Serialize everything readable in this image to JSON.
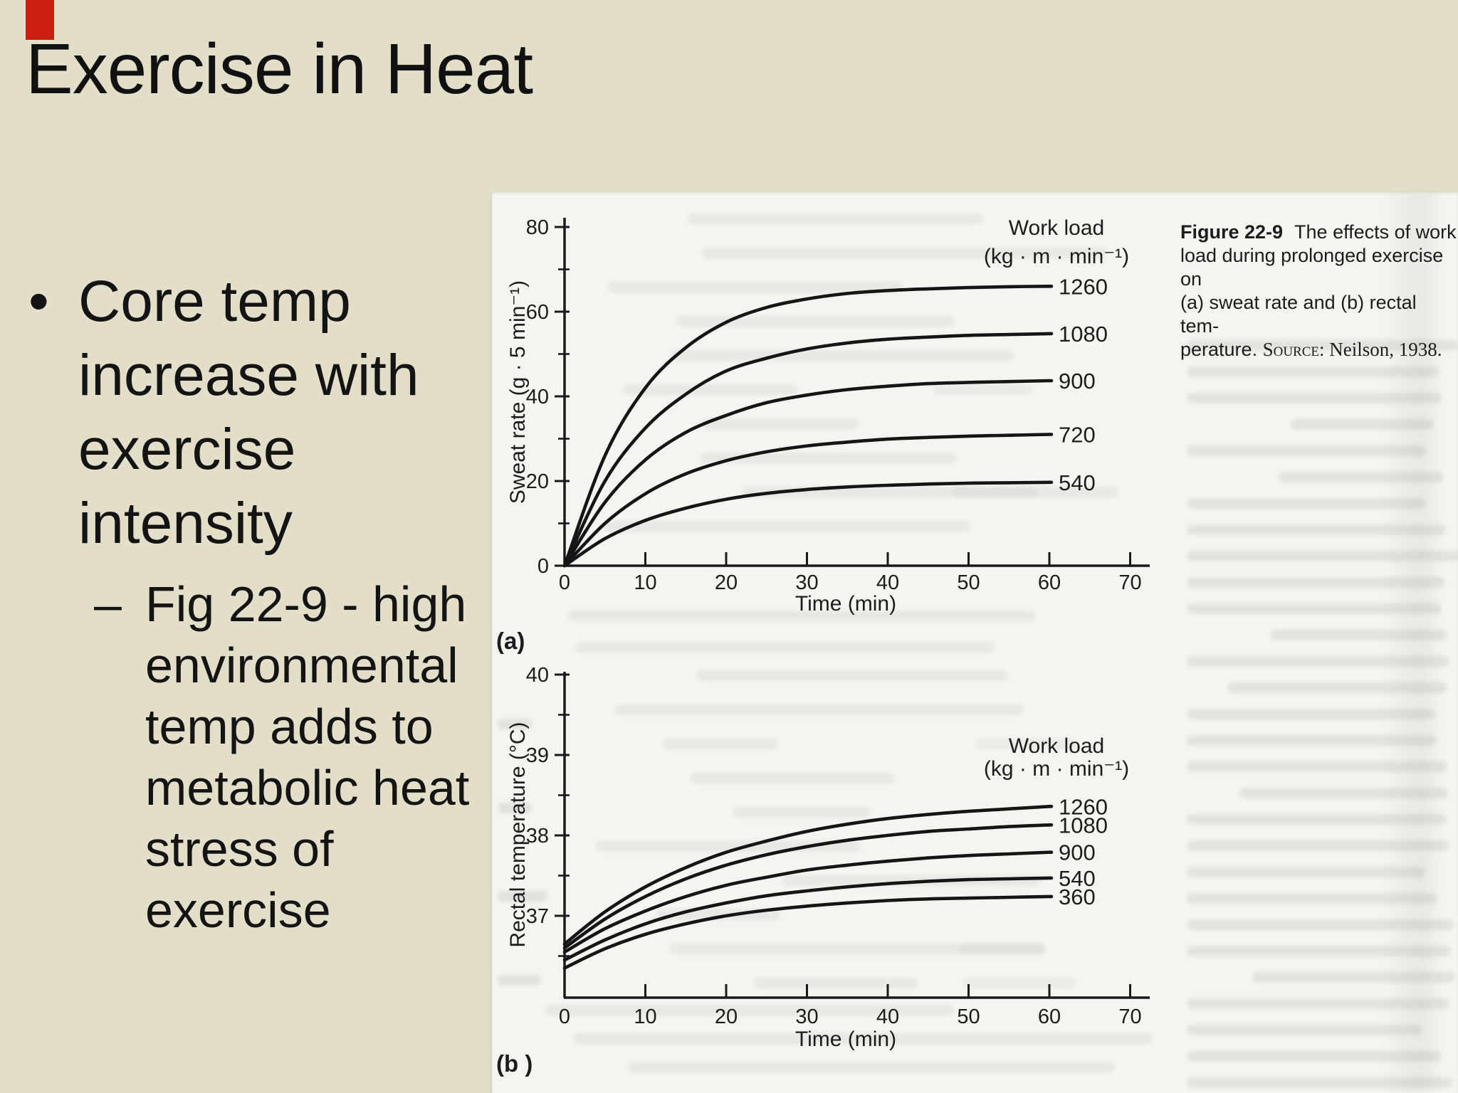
{
  "slide": {
    "title": "Exercise in Heat",
    "bullet": {
      "marker": "•",
      "lines": [
        "Core temp",
        "increase with",
        "exercise",
        "intensity"
      ]
    },
    "sub_bullet": {
      "marker": "–",
      "lines": [
        "Fig 22-9 - high",
        "environmental",
        "temp adds to",
        "metabolic heat",
        "stress of",
        "exercise"
      ]
    },
    "colors": {
      "background": "#e2dec8",
      "text": "#141414",
      "page": "#f5f4f0",
      "ink": "#1c1c1c",
      "artifact_red": "#cb1e12"
    }
  },
  "figure": {
    "caption": {
      "label": "Figure 22-9",
      "line1_rest": "The effects of work",
      "line2": "load during prolonged exercise on",
      "line3": "(a) sweat rate and (b) rectal tem-",
      "line4_prefix": "perature. ",
      "source_label": "Source:",
      "source_rest": " Neilson, 1938."
    }
  },
  "chart_data": [
    {
      "id": "a",
      "type": "line",
      "panel_label": "(a)",
      "title": "",
      "xlabel": "Time (min)",
      "ylabel": "Sweat rate (g · 5 min⁻¹)",
      "xlim": [
        0,
        72
      ],
      "ylim": [
        0,
        80
      ],
      "xticks": [
        0,
        10,
        20,
        30,
        40,
        50,
        60,
        70
      ],
      "yticks_major": [
        0,
        20,
        40,
        60,
        80
      ],
      "yticks_minor": [
        10,
        30,
        50,
        70
      ],
      "grid": false,
      "legend_position": "right",
      "legend_title": [
        "Work load",
        "(kg · m · min⁻¹)"
      ],
      "x": [
        0,
        5,
        10,
        15,
        20,
        25,
        30,
        35,
        40,
        45,
        50,
        55,
        60
      ],
      "series": [
        {
          "name": "1260",
          "values": [
            0,
            26,
            42,
            51.5,
            57.5,
            61,
            63,
            64.3,
            65,
            65.4,
            65.7,
            65.9,
            66
          ]
        },
        {
          "name": "1080",
          "values": [
            0,
            20,
            32.5,
            40.5,
            46,
            49,
            51.2,
            52.6,
            53.5,
            54,
            54.4,
            54.6,
            54.8
          ]
        },
        {
          "name": "900",
          "values": [
            0,
            15,
            25,
            31.5,
            35.5,
            38.5,
            40.3,
            41.6,
            42.4,
            43,
            43.3,
            43.5,
            43.7
          ]
        },
        {
          "name": "720",
          "values": [
            0,
            10,
            17,
            21.7,
            24.8,
            26.9,
            28.3,
            29.2,
            29.9,
            30.3,
            30.6,
            30.8,
            31
          ]
        },
        {
          "name": "540",
          "values": [
            0,
            6.4,
            10.7,
            13.6,
            15.7,
            17.1,
            18,
            18.6,
            19,
            19.3,
            19.5,
            19.6,
            19.7
          ]
        }
      ]
    },
    {
      "id": "b",
      "type": "line",
      "panel_label": "(b )",
      "title": "",
      "xlabel": "Time (min)",
      "ylabel": "Rectal temperature (°C)",
      "xlim": [
        0,
        72
      ],
      "ylim": [
        36,
        40
      ],
      "xticks": [
        0,
        10,
        20,
        30,
        40,
        50,
        60,
        70
      ],
      "yticks_major": [
        37,
        38,
        39,
        40
      ],
      "yticks_minor": [
        36.5,
        37.5,
        38.5,
        39.5
      ],
      "grid": false,
      "legend_position": "right",
      "legend_title": [
        "Work load",
        "(kg · m · min⁻¹)"
      ],
      "x": [
        0,
        5,
        10,
        15,
        20,
        25,
        30,
        35,
        40,
        45,
        50,
        55,
        60
      ],
      "series": [
        {
          "name": "1260",
          "values": [
            36.65,
            37.05,
            37.36,
            37.6,
            37.79,
            37.93,
            38.05,
            38.14,
            38.21,
            38.26,
            38.3,
            38.33,
            38.36
          ]
        },
        {
          "name": "1080",
          "values": [
            36.6,
            36.96,
            37.24,
            37.46,
            37.63,
            37.76,
            37.86,
            37.94,
            38.0,
            38.05,
            38.08,
            38.11,
            38.13
          ]
        },
        {
          "name": "900",
          "values": [
            36.55,
            36.84,
            37.06,
            37.24,
            37.38,
            37.48,
            37.57,
            37.63,
            37.68,
            37.72,
            37.75,
            37.77,
            37.79
          ]
        },
        {
          "name": "540",
          "values": [
            36.45,
            36.7,
            36.9,
            37.05,
            37.16,
            37.25,
            37.31,
            37.36,
            37.4,
            37.43,
            37.45,
            37.46,
            37.47
          ]
        },
        {
          "name": "360",
          "values": [
            36.35,
            36.59,
            36.77,
            36.9,
            37.0,
            37.07,
            37.12,
            37.16,
            37.19,
            37.21,
            37.22,
            37.23,
            37.24
          ]
        }
      ]
    }
  ]
}
